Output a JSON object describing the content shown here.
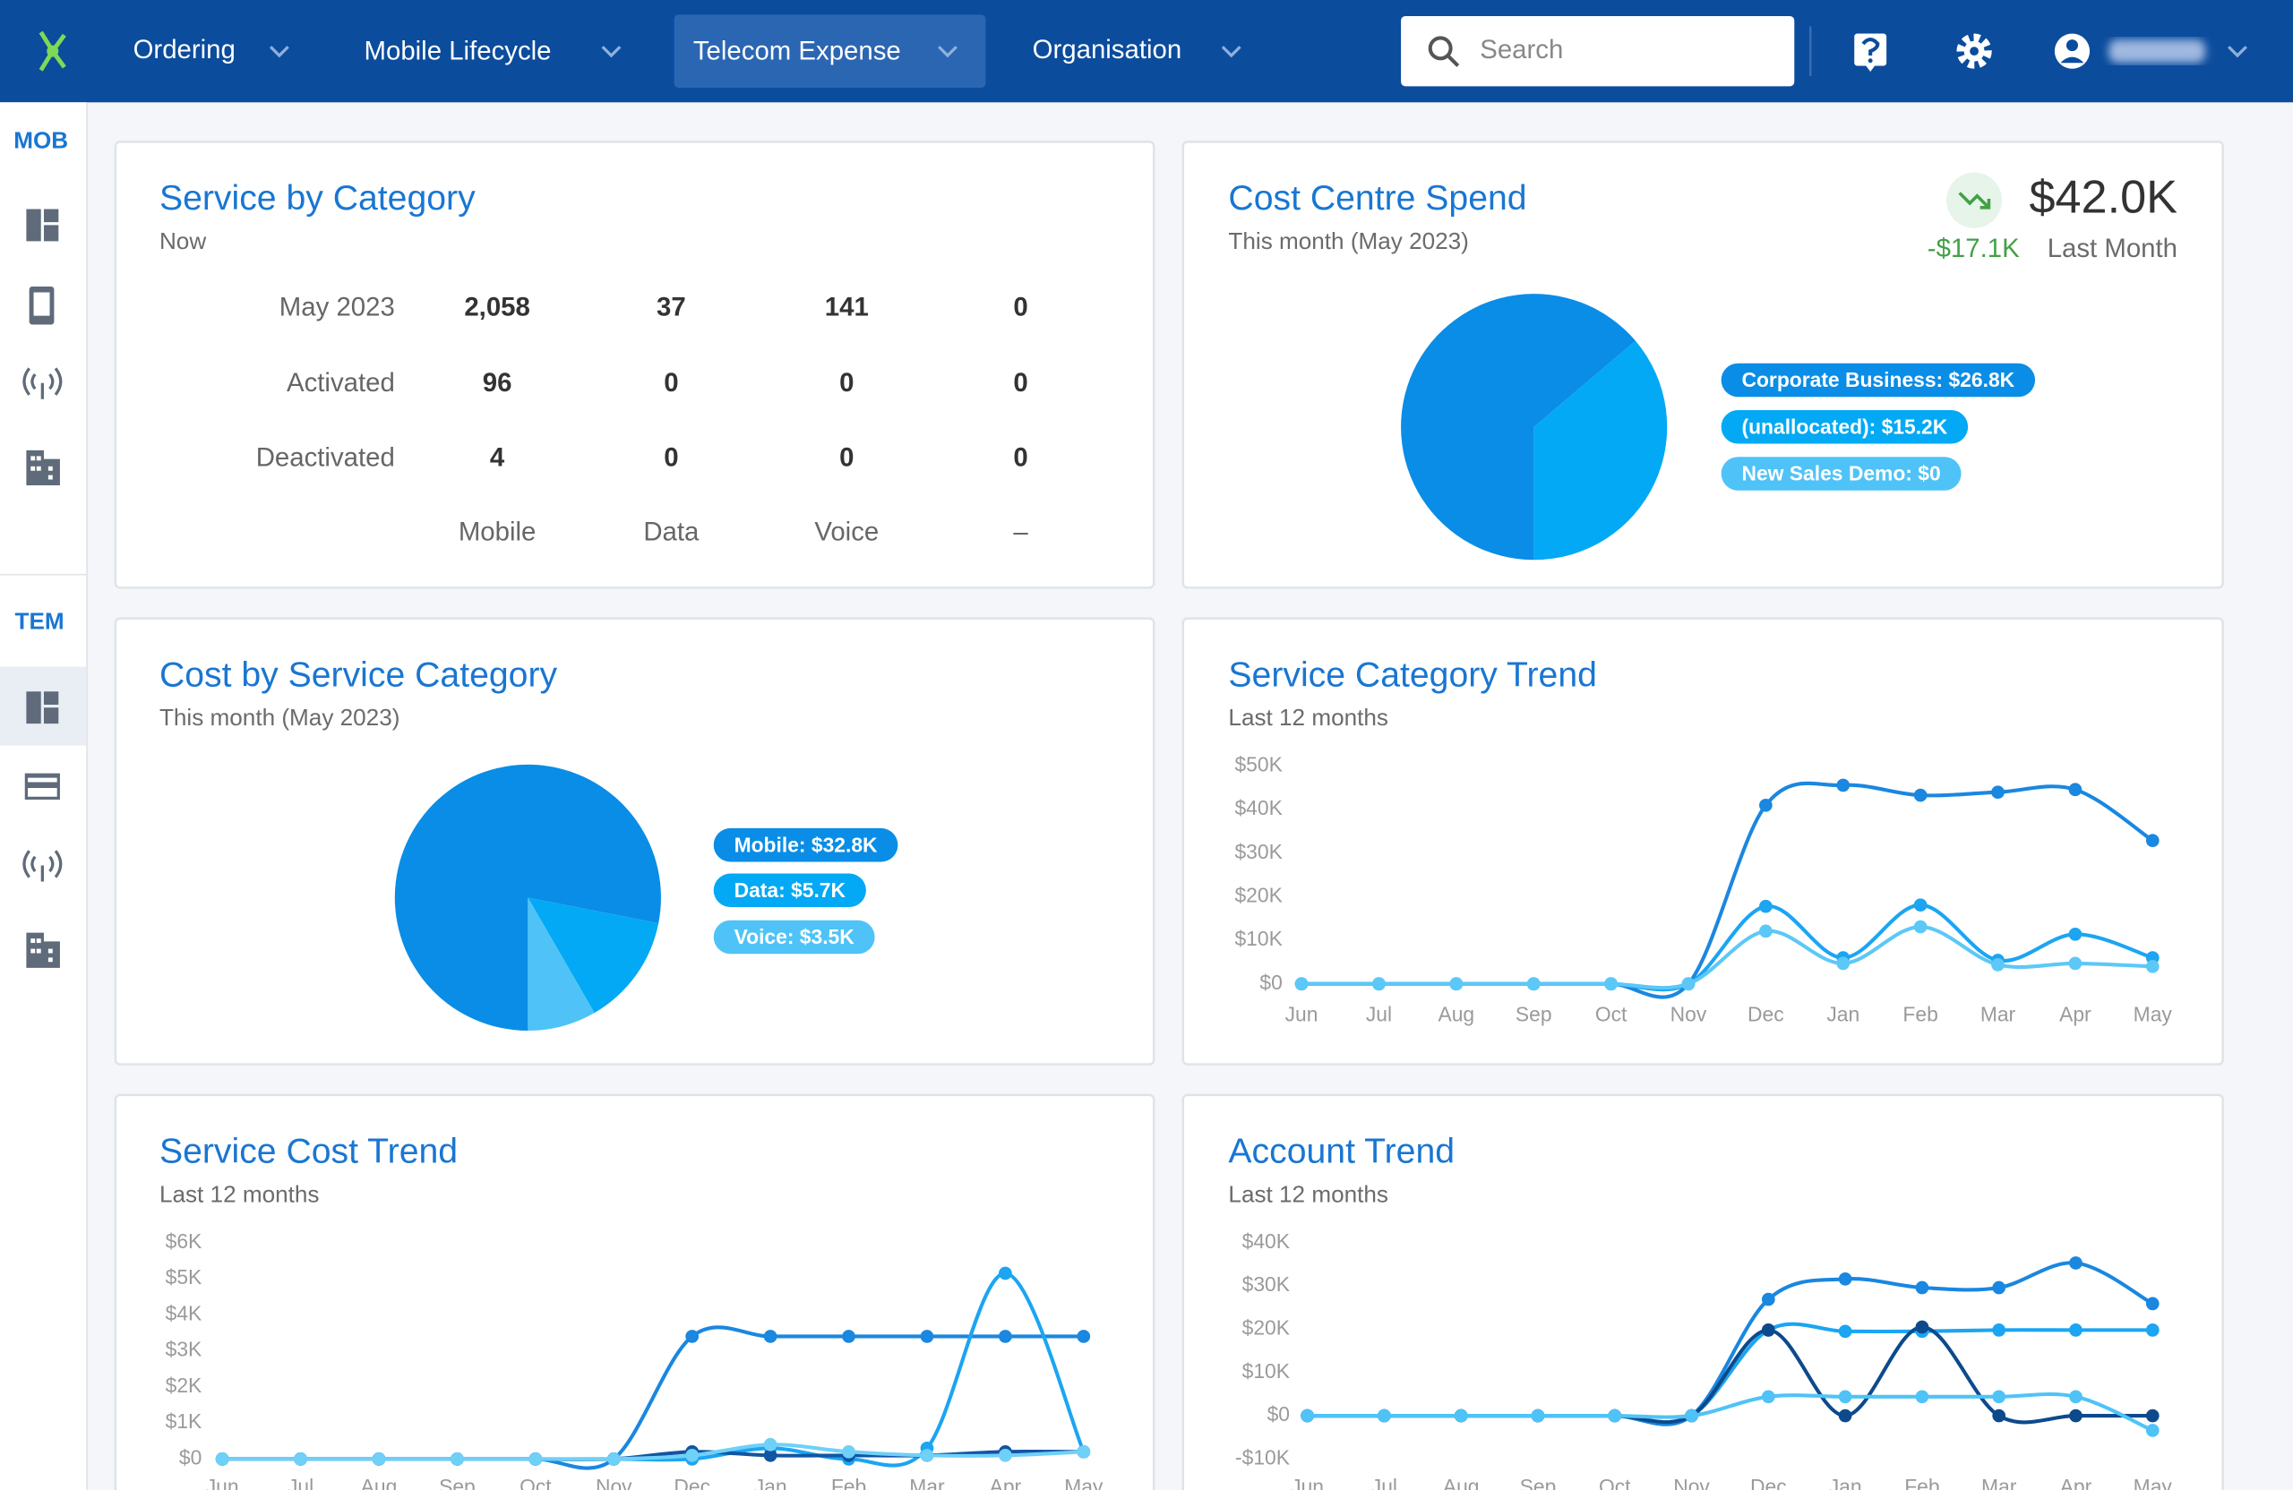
{
  "nav": {
    "items": [
      "Ordering",
      "Mobile Lifecycle",
      "Telecom Expense",
      "Organisation"
    ],
    "search_placeholder": "Search"
  },
  "sidebar": {
    "sections": [
      "MOB",
      "TEM"
    ]
  },
  "service_by_category": {
    "title": "Service by Category",
    "subtitle": "Now",
    "columns": [
      "Mobile",
      "Data",
      "Voice",
      "–"
    ],
    "rows": [
      {
        "label": "May 2023",
        "cells": [
          "2,058",
          "37",
          "141",
          "0"
        ]
      },
      {
        "label": "Activated",
        "cells": [
          "96",
          "0",
          "0",
          "0"
        ]
      },
      {
        "label": "Deactivated",
        "cells": [
          "4",
          "0",
          "0",
          "0"
        ]
      }
    ]
  },
  "chart_data": [
    {
      "type": "pie",
      "title": "Cost Centre Spend",
      "subtitle": "This month (May 2023)",
      "total_label": "$42.0K",
      "change_label": "-$17.1K",
      "change_note": "Last Month",
      "values": [
        26800,
        15200,
        0
      ],
      "value_labels": [
        "Corporate Business: $26.8K",
        "(unallocated): $15.2K",
        "New Sales Demo: $0"
      ],
      "colors": [
        "#0a8de6",
        "#03a9f4",
        "#4fc3f7"
      ]
    },
    {
      "type": "pie",
      "title": "Cost by Service Category",
      "subtitle": "This month (May 2023)",
      "values": [
        32800,
        5700,
        3500
      ],
      "value_labels": [
        "Mobile: $32.8K",
        "Data: $5.7K",
        "Voice: $3.5K"
      ],
      "colors": [
        "#0a8de6",
        "#03a9f4",
        "#4fc3f7"
      ]
    },
    {
      "type": "line",
      "title": "Service Category Trend",
      "subtitle": "Last 12 months",
      "categories": [
        "Jun",
        "Jul",
        "Aug",
        "Sep",
        "Oct",
        "Nov",
        "Dec",
        "Jan",
        "Feb",
        "Mar",
        "Apr",
        "May"
      ],
      "ylim": [
        0,
        50000
      ],
      "yticks": [
        {
          "value": 0,
          "label": "$0"
        },
        {
          "value": 10000,
          "label": "$10K"
        },
        {
          "value": 20000,
          "label": "$20K"
        },
        {
          "value": 30000,
          "label": "$30K"
        },
        {
          "value": 40000,
          "label": "$40K"
        },
        {
          "value": 50000,
          "label": "$50K"
        }
      ],
      "grid": false,
      "series": [
        {
          "color": "#1a87e0",
          "values": [
            0,
            0,
            0,
            0,
            0,
            0,
            41000,
            45600,
            43300,
            44000,
            44600,
            32900
          ]
        },
        {
          "color": "#1ba5f2",
          "values": [
            0,
            0,
            0,
            0,
            0,
            0,
            17800,
            6000,
            18100,
            5400,
            11400,
            6000
          ]
        },
        {
          "color": "#5cc8f7",
          "values": [
            0,
            0,
            0,
            0,
            0,
            0,
            12100,
            4700,
            13100,
            4400,
            4700,
            4000
          ]
        }
      ]
    },
    {
      "type": "line",
      "title": "Service Cost Trend",
      "subtitle": "Last 12 months",
      "categories": [
        "Jun",
        "Jul",
        "Aug",
        "Sep",
        "Oct",
        "Nov",
        "Dec",
        "Jan",
        "Feb",
        "Mar",
        "Apr",
        "May"
      ],
      "ylim": [
        0,
        6000
      ],
      "yticks": [
        {
          "value": 0,
          "label": "$0"
        },
        {
          "value": 1000,
          "label": "$1K"
        },
        {
          "value": 2000,
          "label": "$2K"
        },
        {
          "value": 3000,
          "label": "$3K"
        },
        {
          "value": 4000,
          "label": "$4K"
        },
        {
          "value": 5000,
          "label": "$5K"
        },
        {
          "value": 6000,
          "label": "$6K"
        }
      ],
      "grid": false,
      "series": [
        {
          "color": "#1a87e0",
          "values": [
            0,
            0,
            0,
            0,
            0,
            0,
            3400,
            3400,
            3400,
            3400,
            3400,
            3400
          ]
        },
        {
          "color": "#1ba5f2",
          "values": [
            0,
            0,
            0,
            0,
            0,
            0,
            0,
            300,
            0,
            300,
            5150,
            200
          ]
        },
        {
          "color": "#1255a3",
          "values": [
            0,
            0,
            0,
            0,
            0,
            0,
            200,
            100,
            100,
            100,
            200,
            200
          ]
        },
        {
          "color": "#6fd0f8",
          "values": [
            0,
            0,
            0,
            0,
            0,
            0,
            100,
            400,
            200,
            100,
            100,
            200
          ]
        }
      ]
    },
    {
      "type": "line",
      "title": "Account Trend",
      "subtitle": "Last 12 months",
      "categories": [
        "Jun",
        "Jul",
        "Aug",
        "Sep",
        "Oct",
        "Nov",
        "Dec",
        "Jan",
        "Feb",
        "Mar",
        "Apr",
        "May"
      ],
      "ylim": [
        -10000,
        40000
      ],
      "yticks": [
        {
          "value": -10000,
          "label": "-$10K"
        },
        {
          "value": 0,
          "label": "$0"
        },
        {
          "value": 10000,
          "label": "$10K"
        },
        {
          "value": 20000,
          "label": "$20K"
        },
        {
          "value": 30000,
          "label": "$30K"
        },
        {
          "value": 40000,
          "label": "$40K"
        }
      ],
      "grid": false,
      "series": [
        {
          "color": "#1a87e0",
          "values": [
            0,
            0,
            0,
            0,
            0,
            0,
            26900,
            31600,
            29600,
            29600,
            35300,
            25900
          ]
        },
        {
          "color": "#1ba5f2",
          "values": [
            0,
            0,
            0,
            0,
            0,
            0,
            19800,
            19500,
            19500,
            19800,
            19800,
            19800
          ]
        },
        {
          "color": "#0d4a8c",
          "values": [
            0,
            0,
            0,
            0,
            0,
            0,
            19800,
            0,
            20500,
            0,
            0,
            0
          ]
        },
        {
          "color": "#4fc3f7",
          "values": [
            0,
            0,
            0,
            0,
            0,
            0,
            4400,
            4400,
            4400,
            4400,
            4400,
            -3400
          ]
        }
      ]
    }
  ]
}
